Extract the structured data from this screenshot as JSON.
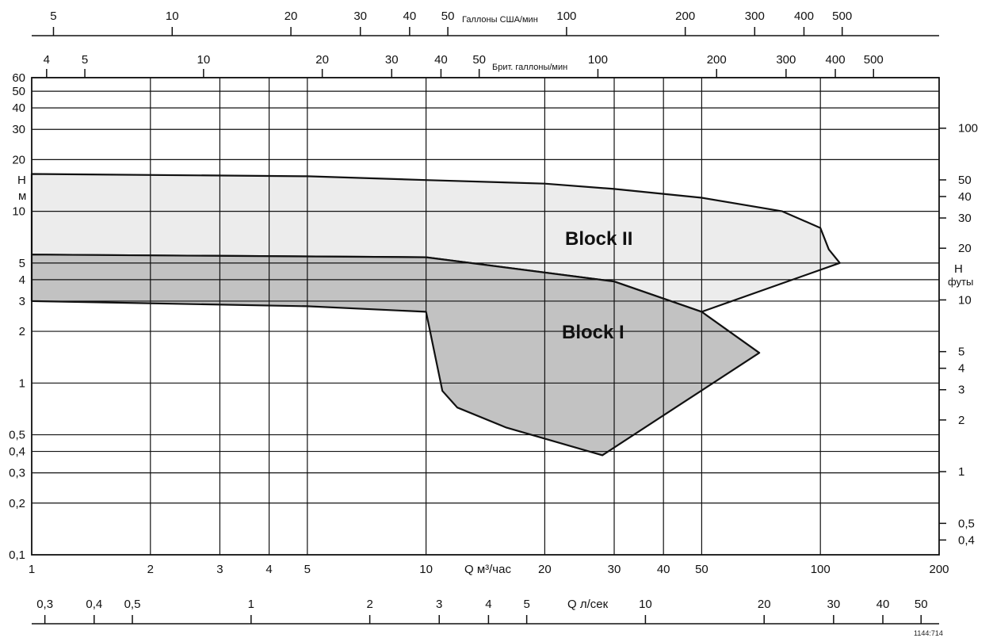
{
  "chart_data": {
    "type": "area",
    "title": "",
    "x_scale": "log",
    "y_scale": "log",
    "grid": true,
    "xlabel": "Q м³/час",
    "ylabel": "H м",
    "xlim": [
      1,
      200
    ],
    "ylim": [
      0.1,
      60
    ],
    "x_ticks": [
      1,
      2,
      3,
      4,
      5,
      10,
      20,
      30,
      40,
      50,
      100,
      200
    ],
    "x_tick_labels": [
      "1",
      "2",
      "3",
      "4",
      "5",
      "10",
      "20",
      "30",
      "40",
      "50",
      "100",
      "200"
    ],
    "y_ticks": [
      0.1,
      0.2,
      0.3,
      0.4,
      0.5,
      1,
      2,
      3,
      4,
      5,
      10,
      20,
      30,
      40,
      50,
      60
    ],
    "y_tick_labels": [
      "0,1",
      "0,2",
      "0,3",
      "0,4",
      "0,5",
      "1",
      "2",
      "3",
      "4",
      "5",
      "10",
      "20",
      "30",
      "40",
      "50",
      "60"
    ],
    "secondary_axes": {
      "top_us": {
        "label": "Галлоны США/мин",
        "ticks": [
          "5",
          "10",
          "20",
          "30",
          "40",
          "50",
          "100",
          "200",
          "300",
          "400",
          "500"
        ],
        "values": [
          5,
          10,
          20,
          30,
          40,
          50,
          100,
          200,
          300,
          400,
          500
        ]
      },
      "top_brit": {
        "label": "Брит. галлоны/мин",
        "ticks": [
          "4",
          "5",
          "10",
          "20",
          "30",
          "40",
          "50",
          "100",
          "200",
          "300",
          "400",
          "500"
        ],
        "values": [
          4,
          5,
          10,
          20,
          30,
          40,
          50,
          100,
          200,
          300,
          400,
          500
        ]
      },
      "bottom_lsec": {
        "label": "Q л/сек",
        "ticks": [
          "0,3",
          "0,4",
          "0,5",
          "1",
          "2",
          "3",
          "4",
          "5",
          "10",
          "20",
          "30",
          "40",
          "50"
        ],
        "values": [
          0.3,
          0.4,
          0.5,
          1,
          2,
          3,
          4,
          5,
          10,
          20,
          30,
          40,
          50
        ]
      },
      "right_feet": {
        "label_top": "H",
        "label_bottom": "футы",
        "ticks": [
          "0,4",
          "0,5",
          "1",
          "2",
          "3",
          "4",
          "5",
          "10",
          "20",
          "30",
          "40",
          "50",
          "100"
        ],
        "values": [
          0.4,
          0.5,
          1,
          2,
          3,
          4,
          5,
          10,
          20,
          30,
          40,
          50,
          100
        ]
      }
    },
    "series": [
      {
        "name": "Block II",
        "color": "#ececec",
        "points": [
          [
            1,
            16.5
          ],
          [
            5,
            16.0
          ],
          [
            10,
            15.2
          ],
          [
            20,
            14.5
          ],
          [
            30,
            13.5
          ],
          [
            50,
            12.0
          ],
          [
            80,
            10.0
          ],
          [
            100,
            8.0
          ],
          [
            105,
            6.0
          ],
          [
            112,
            5.0
          ],
          [
            50,
            2.6
          ],
          [
            30,
            3.9
          ],
          [
            10,
            5.4
          ],
          [
            1,
            5.6
          ]
        ]
      },
      {
        "name": "Block I",
        "color": "#c2c2c2",
        "points": [
          [
            1,
            5.6
          ],
          [
            10,
            5.4
          ],
          [
            30,
            3.9
          ],
          [
            50,
            2.6
          ],
          [
            70,
            1.5
          ],
          [
            28,
            0.38
          ],
          [
            16,
            0.55
          ],
          [
            12,
            0.72
          ],
          [
            11,
            0.9
          ],
          [
            10,
            2.6
          ],
          [
            5,
            2.8
          ],
          [
            1,
            3.0
          ]
        ]
      }
    ],
    "annotations": [
      "Block II",
      "Block I"
    ],
    "image_code": "1144:714"
  }
}
